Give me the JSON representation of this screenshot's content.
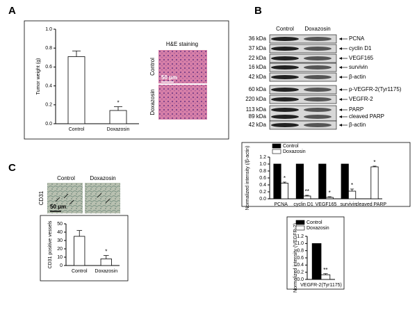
{
  "panels": {
    "a": "A",
    "b": "B",
    "c": "C"
  },
  "he": {
    "title": "H&E staining",
    "rows": [
      "Control",
      "Doxazosin"
    ],
    "scale": "50 μm"
  },
  "blot": {
    "lanes": [
      "Control",
      "Doxazosin"
    ],
    "rows": [
      {
        "kda": "36 kDa",
        "label": "PCNA"
      },
      {
        "kda": "37 kDa",
        "label": "cyclin D1"
      },
      {
        "kda": "22 kDa",
        "label": "VEGF165"
      },
      {
        "kda": "16 kDa",
        "label": "survivin"
      },
      {
        "kda": "42 kDa",
        "label": "β-actin"
      },
      {
        "kda": "60 kDa",
        "label": "p-VEGFR-2(Tyr1175)"
      },
      {
        "kda": "220 kDa",
        "label": "VEGFR-2"
      },
      {
        "kda": "113 kDa",
        "label": "PARP"
      },
      {
        "kda": "89 kDa",
        "label": "cleaved PARP"
      },
      {
        "kda": "42 kDa",
        "label": "β-actin"
      }
    ]
  },
  "cd31": {
    "lanes": [
      "Control",
      "Doxazosin"
    ],
    "stain": "CD31",
    "scale": "50 μm"
  },
  "chart_data": [
    {
      "type": "bar",
      "y_label": "Tumor weight (g)",
      "categories": [
        "Control",
        "Doxazosin"
      ],
      "values": [
        0.71,
        0.14
      ],
      "errors": [
        0.06,
        0.04
      ],
      "annotations": [
        null,
        "*"
      ],
      "color": "#ffffff",
      "ylim": [
        0,
        1.0
      ],
      "yticks": [
        {
          "value": 0,
          "label": "0.0"
        },
        {
          "value": 0.2,
          "label": "0.2"
        },
        {
          "value": 0.4,
          "label": "0.4"
        },
        {
          "value": 0.6,
          "label": "0.6"
        },
        {
          "value": 0.8,
          "label": "0.8"
        },
        {
          "value": 1.0,
          "label": "1.0"
        }
      ],
      "grid": false
    },
    {
      "type": "bar",
      "y_label": "Normalized intensity (/β-actin)",
      "categories": [
        "PCNA",
        "cyclin D1",
        "VEGF165",
        "survivin",
        "cleaved PARP"
      ],
      "series": [
        {
          "name": "Control",
          "color": "#000000",
          "values": [
            1.0,
            1.0,
            1.0,
            1.0,
            0.0
          ]
        },
        {
          "name": "Doxazosin",
          "color": "#ffffff",
          "values": [
            0.45,
            0.08,
            0.04,
            0.22,
            0.92
          ],
          "errors": [
            0.03,
            0.02,
            0.02,
            0.06,
            0.02
          ],
          "annotations": [
            "*",
            "**",
            "*",
            "*",
            "*"
          ]
        }
      ],
      "ylim": [
        0,
        1.2
      ],
      "yticks": [
        {
          "value": 0,
          "label": "0.0"
        },
        {
          "value": 0.2,
          "label": "0.2"
        },
        {
          "value": 0.4,
          "label": "0.4"
        },
        {
          "value": 0.6,
          "label": "0.6"
        },
        {
          "value": 0.8,
          "label": "0.8"
        },
        {
          "value": 1.0,
          "label": "1.0"
        },
        {
          "value": 1.2,
          "label": "1.2"
        }
      ],
      "grid": false,
      "legend": "top"
    },
    {
      "type": "bar",
      "y_label": "Normalized intensity (VEGFR-2)",
      "categories": [
        "VEGFR-2(Tyr1175)"
      ],
      "series": [
        {
          "name": "Control",
          "color": "#000000",
          "values": [
            1.0
          ]
        },
        {
          "name": "Doxazosin",
          "color": "#ffffff",
          "values": [
            0.13
          ],
          "errors": [
            0.03
          ],
          "annotations": [
            "**"
          ]
        }
      ],
      "ylim": [
        0,
        1.2
      ],
      "yticks": [
        {
          "value": 0,
          "label": "0.0"
        },
        {
          "value": 0.2,
          "label": "0.2"
        },
        {
          "value": 0.4,
          "label": "0.4"
        },
        {
          "value": 0.6,
          "label": "0.6"
        },
        {
          "value": 0.8,
          "label": "0.8"
        },
        {
          "value": 1.0,
          "label": "1.0"
        },
        {
          "value": 1.2,
          "label": "1.2"
        }
      ],
      "grid": false,
      "legend": "top"
    },
    {
      "type": "bar",
      "y_label": "CD31 positive vessels",
      "categories": [
        "Control",
        "Doxazosin"
      ],
      "values": [
        35,
        8
      ],
      "errors": [
        7,
        4
      ],
      "annotations": [
        null,
        "*"
      ],
      "color": "#ffffff",
      "ylim": [
        0,
        50
      ],
      "yticks": [
        0,
        10,
        20,
        30,
        40,
        50
      ],
      "grid": false
    }
  ]
}
